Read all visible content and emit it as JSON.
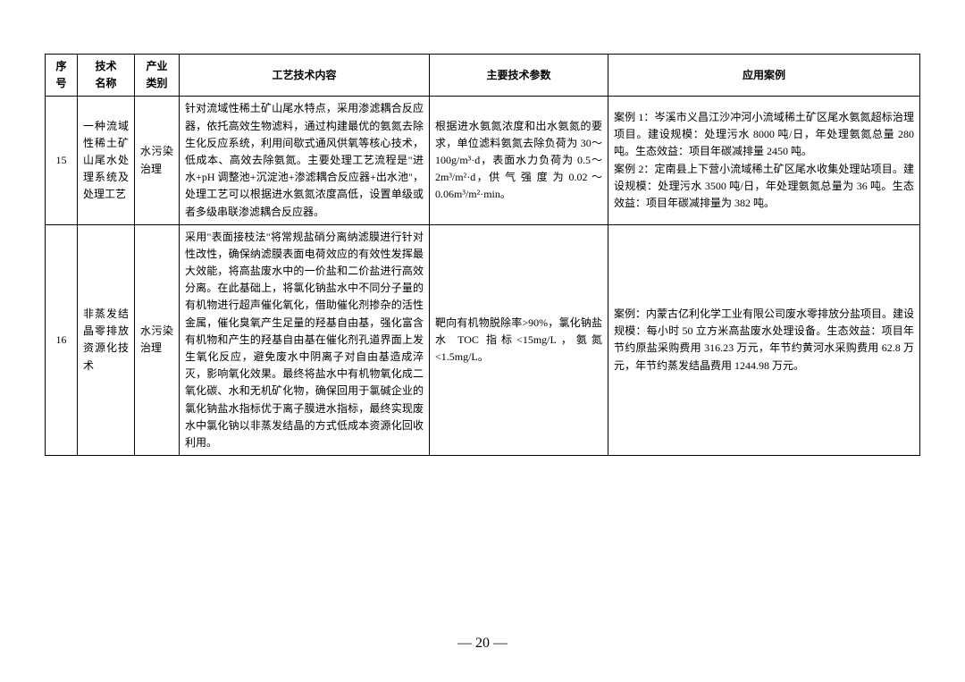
{
  "table": {
    "headers": {
      "num": "序号",
      "name": "技术\n名称",
      "industry": "产业\n类别",
      "tech": "工艺技术内容",
      "param": "主要技术参数",
      "cases": "应用案例"
    },
    "rows": [
      {
        "num": "15",
        "name": "一种流域性稀土矿山尾水处理系统及处理工艺",
        "industry": "水污染治理",
        "tech": "针对流域性稀土矿山尾水特点，采用渗滤耦合反应器，依托高效生物滤料，通过构建最优的氨氮去除生化反应系统，利用间歇式通风供氧等核心技术，低成本、高效去除氨氮。主要处理工艺流程是\"进水+pH 调整池+沉淀池+渗滤耦合反应器+出水池\"，处理工艺可以根据进水氨氮浓度高低，设置单级或者多级串联渗滤耦合反应器。",
        "param": "根据进水氨氮浓度和出水氨氮的要求，单位滤料氨氮去除负荷为 30～100g/m³·d，表面水力负荷为 0.5～2m³/m²·d，供 气 强 度 为 0.02 ～0.06m³/m²·min。",
        "cases": "案例 1：岑溪市义昌江沙冲河小流域稀土矿区尾水氨氮超标治理项目。建设规模：处理污水 8000 吨/日，年处理氨氮总量 280 吨。生态效益：项目年碳减排量 2450 吨。\n案例 2：定南县上下营小流域稀土矿区尾水收集处理站项目。建设规模：处理污水 3500 吨/日，年处理氨氮总量为 36 吨。生态效益：项目年碳减排量为 382 吨。"
      },
      {
        "num": "16",
        "name": "非蒸发结晶零排放资源化技术",
        "industry": "水污染治理",
        "tech": "采用\"表面接枝法\"将常规盐硝分离纳滤膜进行针对性改性，确保纳滤膜表面电荷效应的有效性发挥最大效能，将高盐废水中的一价盐和二价盐进行高效分离。在此基础上，将氯化钠盐水中不同分子量的有机物进行超声催化氧化，借助催化剂掺杂的活性金属，催化臭氧产生足量的羟基自由基，强化富含有机物和产生的羟基自由基在催化剂孔道界面上发生氧化反应，避免废水中阴离子对自由基造成淬灭，影响氧化效果。最终将盐水中有机物氧化成二氧化碳、水和无机矿化物，确保回用于氯碱企业的氯化钠盐水指标优于离子膜进水指标，最终实现废水中氯化钠以非蒸发结晶的方式低成本资源化回收利用。",
        "param": "靶向有机物脱除率>90%，氯化钠盐水 TOC 指标<15mg/L，氨氮<1.5mg/L。",
        "cases": "案例：内蒙古亿利化学工业有限公司废水零排放分盐项目。建设规模：每小时 50 立方米高盐废水处理设备。生态效益：项目年节约原盐采购费用 316.23 万元，年节约黄河水采购费用 62.8 万元，年节约蒸发结晶费用 1244.98 万元。"
      }
    ]
  },
  "page_number": "— 20 —"
}
